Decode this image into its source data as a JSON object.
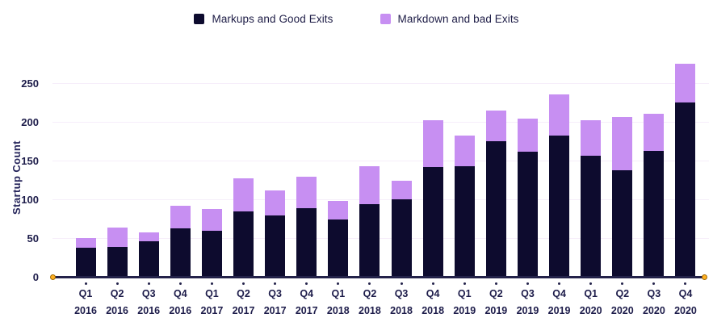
{
  "legend": {
    "items": [
      {
        "label": "Markups and Good Exits",
        "color": "#0d0b2e"
      },
      {
        "label": "Markdown and bad Exits",
        "color": "#c78ff2"
      }
    ]
  },
  "chart_data": {
    "type": "bar",
    "stacked": true,
    "title": "",
    "xlabel": "",
    "ylabel": "Startup Count",
    "ylim": [
      0,
      280
    ],
    "yticks": [
      0,
      50,
      100,
      150,
      200,
      250
    ],
    "grid": "horizontal",
    "legend_position": "top-center",
    "categories": [
      "Q1 2016",
      "Q2 2016",
      "Q3 2016",
      "Q4 2016",
      "Q1 2017",
      "Q2 2017",
      "Q3 2017",
      "Q4 2017",
      "Q1 2018",
      "Q2 2018",
      "Q3 2018",
      "Q4 2018",
      "Q1 2019",
      "Q2 2019",
      "Q3 2019",
      "Q4 2019",
      "Q1 2020",
      "Q2 2020",
      "Q3 2020",
      "Q4 2020"
    ],
    "series": [
      {
        "name": "Markups and Good Exits",
        "color": "#0d0b2e",
        "values": [
          37,
          39,
          46,
          62,
          59,
          84,
          79,
          89,
          74,
          94,
          100,
          142,
          143,
          175,
          161,
          182,
          156,
          138,
          163,
          225
        ]
      },
      {
        "name": "Markdown and bad Exits",
        "color": "#c78ff2",
        "values": [
          13,
          25,
          11,
          30,
          28,
          43,
          32,
          40,
          24,
          49,
          24,
          60,
          39,
          40,
          43,
          53,
          46,
          68,
          47,
          50
        ]
      }
    ],
    "totals": [
      50,
      64,
      57,
      92,
      87,
      127,
      111,
      129,
      98,
      143,
      124,
      202,
      182,
      215,
      204,
      235,
      202,
      206,
      210,
      275
    ],
    "axis_endpoint_marker_color": "#ffb021"
  }
}
